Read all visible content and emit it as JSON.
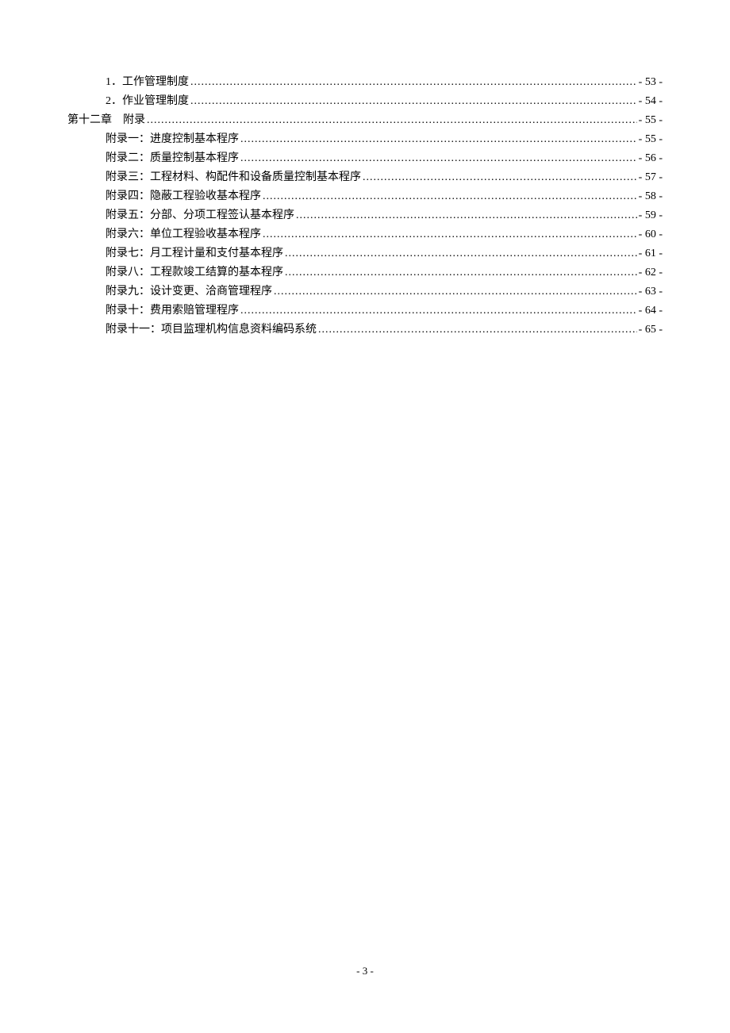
{
  "toc": {
    "entries": [
      {
        "indent": 2,
        "label": "1．工作管理制度",
        "page": "- 53 -"
      },
      {
        "indent": 2,
        "label": "2．作业管理制度",
        "page": "- 54 -"
      },
      {
        "indent": 1,
        "label": "第十二章　附录",
        "page": "- 55 -"
      },
      {
        "indent": 2,
        "label": "附录一：进度控制基本程序",
        "page": "- 55 -"
      },
      {
        "indent": 2,
        "label": "附录二：质量控制基本程序",
        "page": "- 56 -"
      },
      {
        "indent": 2,
        "label": "附录三：工程材料、构配件和设备质量控制基本程序",
        "page": "- 57 -"
      },
      {
        "indent": 2,
        "label": "附录四：隐蔽工程验收基本程序",
        "page": "- 58 -"
      },
      {
        "indent": 2,
        "label": "附录五：分部、分项工程签认基本程序",
        "page": "- 59 -"
      },
      {
        "indent": 2,
        "label": "附录六：单位工程验收基本程序",
        "page": "- 60 -"
      },
      {
        "indent": 2,
        "label": "附录七：月工程计量和支付基本程序",
        "page": "- 61 -"
      },
      {
        "indent": 2,
        "label": "附录八：工程款竣工结算的基本程序",
        "page": "- 62 -"
      },
      {
        "indent": 2,
        "label": "附录九：设计变更、洽商管理程序",
        "page": "- 63 -"
      },
      {
        "indent": 2,
        "label": "附录十：费用索赔管理程序",
        "page": "- 64 -"
      },
      {
        "indent": 2,
        "label": "附录十一：项目监理机构信息资料编码系统",
        "page": "- 65 -"
      }
    ]
  },
  "footer": {
    "page_number": "- 3 -"
  }
}
